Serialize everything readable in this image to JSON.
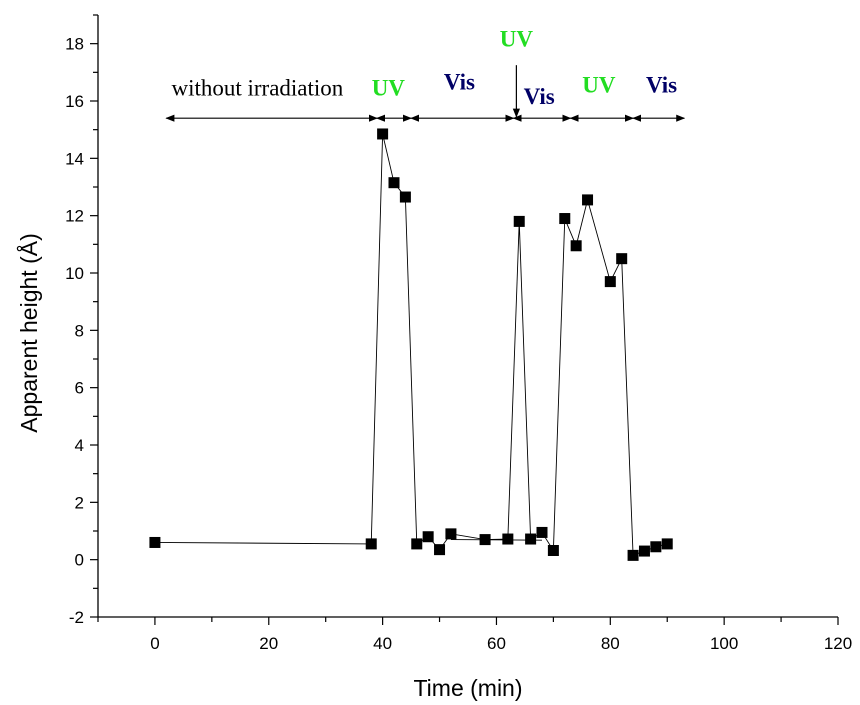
{
  "chart_data": {
    "type": "scatter",
    "title": "",
    "xlabel": "Time (min)",
    "ylabel": "Apparent height (Å)",
    "xlim": [
      -10,
      120
    ],
    "ylim": [
      -2,
      19
    ],
    "x_ticks": [
      0,
      20,
      40,
      60,
      80,
      100,
      120
    ],
    "y_ticks": [
      -2,
      0,
      2,
      4,
      6,
      8,
      10,
      12,
      14,
      16,
      18
    ],
    "grid": false,
    "series": [
      {
        "marker": "square",
        "line": true,
        "color": "#000000",
        "x": [
          0,
          38,
          40,
          42,
          44,
          46,
          48,
          50,
          52,
          58,
          62,
          64,
          66,
          68,
          70,
          72,
          74,
          76,
          80,
          82,
          84,
          86,
          88,
          90
        ],
        "y": [
          0.6,
          0.55,
          14.85,
          13.15,
          12.65,
          0.55,
          0.8,
          0.35,
          0.9,
          0.7,
          0.72,
          11.8,
          0.72,
          0.95,
          0.32,
          11.9,
          10.95,
          12.55,
          9.7,
          10.5,
          0.15,
          0.3,
          0.45,
          0.55
        ]
      }
    ],
    "extra_line": {
      "x": [
        52,
        68
      ],
      "y": [
        0.7,
        0.68
      ]
    },
    "annotations": [
      {
        "text": "without irradiation",
        "color": "#000000",
        "bold": false,
        "x": 18,
        "y": 16.2
      },
      {
        "text": "UV",
        "color": "#22dd22",
        "bold": true,
        "x": 41,
        "y": 16.2
      },
      {
        "text": "Vis",
        "color": "#000066",
        "bold": true,
        "x": 53.5,
        "y": 16.4
      },
      {
        "text": "UV",
        "color": "#22dd22",
        "bold": true,
        "x": 63.5,
        "y": 17.9
      },
      {
        "text": "Vis",
        "color": "#000066",
        "bold": true,
        "x": 67.5,
        "y": 15.9
      },
      {
        "text": "UV",
        "color": "#22dd22",
        "bold": true,
        "x": 78,
        "y": 16.3
      },
      {
        "text": "Vis",
        "color": "#000066",
        "bold": true,
        "x": 89,
        "y": 16.3
      }
    ],
    "interval_arrows": [
      {
        "from": 2,
        "to": 39
      },
      {
        "from": 39,
        "to": 45
      },
      {
        "from": 45,
        "to": 63
      },
      {
        "from": 63,
        "to": 73
      },
      {
        "from": 73,
        "to": 84
      },
      {
        "from": 84,
        "to": 93
      }
    ],
    "interval_arrow_y": 15.4,
    "pointer_arrow": {
      "x": 63.5,
      "from_y": 17.25,
      "to_y": 15.45
    }
  }
}
